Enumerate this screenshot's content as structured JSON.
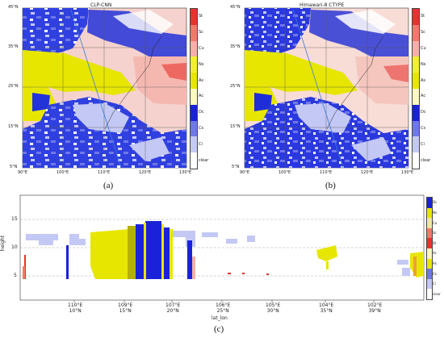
{
  "panel_a": {
    "title": "CLP-CNN",
    "label": "(a)",
    "y_ticks": [
      "45°N",
      "35°N",
      "25°N",
      "15°N",
      "5°N"
    ],
    "x_ticks": [
      "90°E",
      "100°E",
      "110°E",
      "120°E",
      "130°E"
    ]
  },
  "panel_b": {
    "title": "Himawari-8 CTYPE",
    "label": "(b)",
    "y_ticks": [
      "45°N",
      "35°N",
      "25°N",
      "15°N",
      "5°N"
    ],
    "x_ticks": [
      "90°E",
      "100°E",
      "110°E",
      "120°E",
      "130°E"
    ]
  },
  "map_legend": [
    {
      "name": "St",
      "color": "#e8322d"
    },
    {
      "name": "Sc",
      "color": "#f07a6a"
    },
    {
      "name": "Cu",
      "color": "#f5b0a8"
    },
    {
      "name": "Ns",
      "color": "#f2f02a"
    },
    {
      "name": "As",
      "color": "#e7e600"
    },
    {
      "name": "Ac",
      "color": "#fbf9bf"
    },
    {
      "name": "Dc",
      "color": "#1a22d8"
    },
    {
      "name": "Cs",
      "color": "#6f78e6"
    },
    {
      "name": "Ci",
      "color": "#c4c8f4"
    },
    {
      "name": "clear",
      "color": "#ffffff"
    }
  ],
  "panel_c": {
    "label": "(c)",
    "ylabel": "height",
    "xlabel": "lat_lon",
    "y_ticks": [
      "15",
      "10",
      "5"
    ],
    "x_ticks": [
      {
        "lon": "110°E",
        "lat": "10°N"
      },
      {
        "lon": "109°E",
        "lat": "15°N"
      },
      {
        "lon": "107°E",
        "lat": "20°N"
      },
      {
        "lon": "106°E",
        "lat": "25°N"
      },
      {
        "lon": "105°E",
        "lat": "30°N"
      },
      {
        "lon": "104°E",
        "lat": "35°N"
      },
      {
        "lon": "102°E",
        "lat": "39°N"
      }
    ],
    "legend": [
      {
        "name": "Dc",
        "color": "#1a22d8"
      },
      {
        "name": "Ns",
        "color": "#e7e600"
      },
      {
        "name": "Cu",
        "color": "#f0e8a0"
      },
      {
        "name": "Sc",
        "color": "#f07a6a"
      },
      {
        "name": "St",
        "color": "#e8322d"
      },
      {
        "name": "Ac",
        "color": "#fbf3c0"
      },
      {
        "name": "As",
        "color": "#e7e600"
      },
      {
        "name": "Cs",
        "color": "#6f78e6"
      },
      {
        "name": "Ci",
        "color": "#c4c8f4"
      },
      {
        "name": "clear",
        "color": "#ffffff"
      }
    ]
  }
}
